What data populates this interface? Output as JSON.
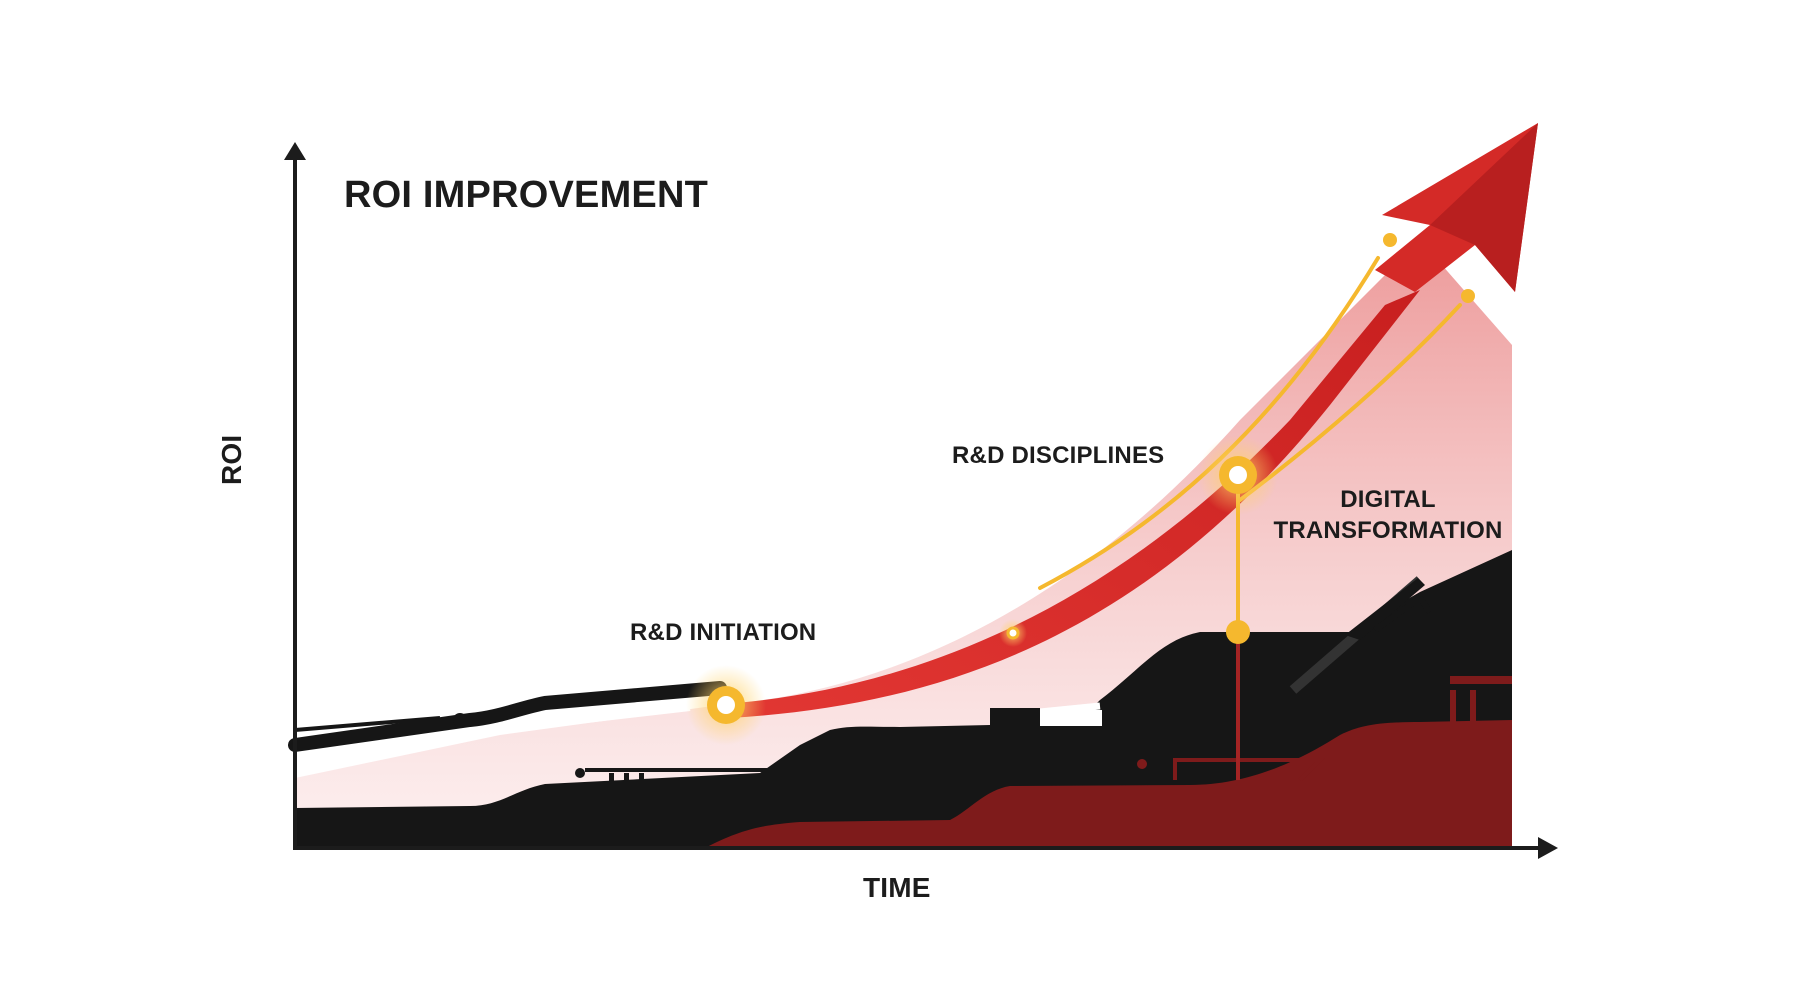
{
  "title": "ROI IMPROVEMENT",
  "axes": {
    "x_label": "TIME",
    "y_label": "ROI"
  },
  "milestones": [
    {
      "label": "R&D INITIATION"
    },
    {
      "label": "R&D DISCIPLINES"
    },
    {
      "label": "DIGITAL TRANSFORMATION"
    }
  ],
  "colors": {
    "arrow_red": "#d42a27",
    "dark_red": "#7e1b1b",
    "black": "#161616",
    "gold": "#f5b82e",
    "pink_fill": "#f0a6a6"
  },
  "icons": [
    "trend-arrow",
    "milestone-node"
  ]
}
